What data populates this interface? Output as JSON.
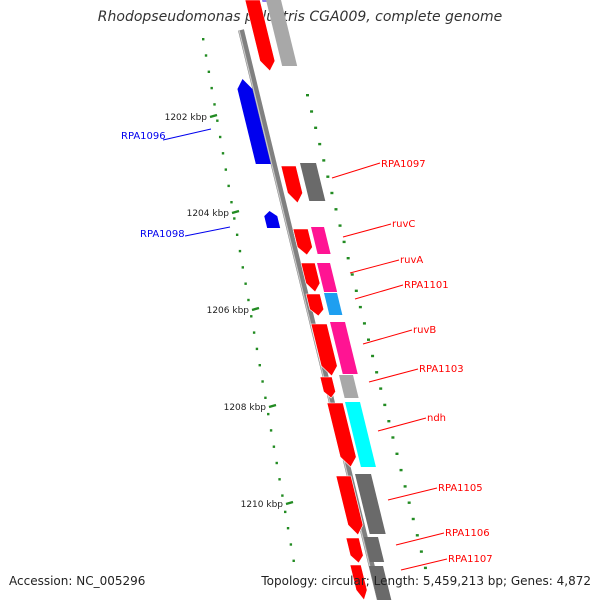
{
  "title": "Rhodopseudomonas palustris CGA009, complete genome",
  "accession": "Accession: NC_005296",
  "summary": "Topology: circular; Length: 5,459,213 bp; Genes: 4,872",
  "colors": {
    "forward_cds": "#ff0000",
    "reverse_cds": "#0000ee",
    "ticks": "#228b22",
    "backbone": "#808080",
    "cog_gray": "#a8a8a8",
    "cog_darkgray": "#6a6a6a",
    "cog_magenta": "#ff1493",
    "cog_cyan": "#00ffff",
    "cog_skyblue": "#1e9ff0",
    "cog_lavender": "#8878ee"
  },
  "scale_labels": [
    "1202 kbp",
    "1204 kbp",
    "1206 kbp",
    "1208 kbp",
    "1210 kbp"
  ],
  "reverse_genes": [
    "RPA1096",
    "RPA1098"
  ],
  "forward_genes": [
    "RPA1097",
    "ruvC",
    "ruvA",
    "RPA1101",
    "ruvB",
    "RPA1103",
    "ndh",
    "RPA1105",
    "RPA1106",
    "RPA1107"
  ]
}
